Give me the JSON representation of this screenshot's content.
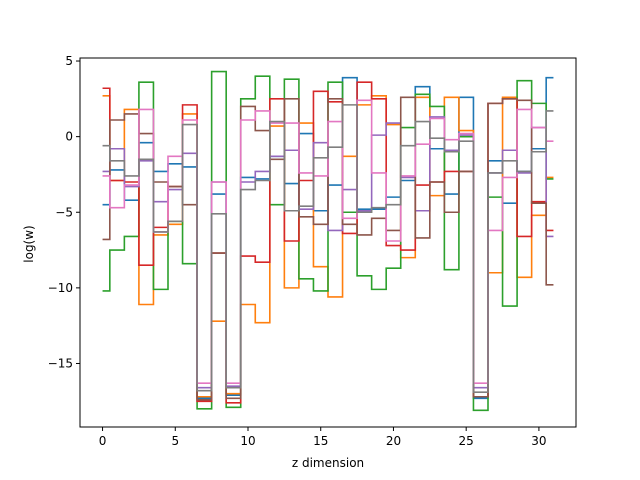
{
  "chart_data": {
    "type": "line",
    "drawstyle": "steps-mid",
    "title": "",
    "xlabel": "z dimension",
    "ylabel": "log(w)",
    "xlim": [
      -1.55,
      32.55
    ],
    "ylim": [
      -19.2,
      5.2
    ],
    "xticks": [
      0,
      5,
      10,
      15,
      20,
      25,
      30
    ],
    "yticks": [
      -15,
      -10,
      -5,
      0,
      5
    ],
    "grid": false,
    "x": [
      0,
      1,
      2,
      3,
      4,
      5,
      6,
      7,
      8,
      9,
      10,
      11,
      12,
      13,
      14,
      15,
      16,
      17,
      18,
      19,
      20,
      21,
      22,
      23,
      24,
      25,
      26,
      27,
      28,
      29,
      30,
      31
    ],
    "series": [
      {
        "color": "#1f77b4",
        "values": [
          -4.5,
          -2.2,
          -4.2,
          -0.4,
          -2.3,
          -1.8,
          -2.0,
          -17.3,
          -3.8,
          -17.1,
          -2.7,
          -2.8,
          -1.3,
          -3.1,
          0.2,
          -4.9,
          -3.2,
          3.9,
          -4.8,
          -4.8,
          -4.0,
          -2.9,
          3.3,
          -0.8,
          -3.8,
          2.6,
          -17.3,
          -1.6,
          -4.4,
          -2.3,
          -0.8,
          3.9
        ]
      },
      {
        "color": "#ff7f0e",
        "values": [
          2.7,
          -2.9,
          1.8,
          -11.1,
          -6.5,
          -5.8,
          1.5,
          -17.2,
          -12.2,
          -17.0,
          -11.1,
          -12.3,
          0.7,
          -10.0,
          0.9,
          -8.6,
          -10.6,
          -1.3,
          2.1,
          2.7,
          0.8,
          -8.0,
          2.6,
          -3.9,
          2.6,
          0.4,
          -17.2,
          -9.0,
          2.6,
          -9.3,
          -5.2,
          -2.7
        ]
      },
      {
        "color": "#2ca02c",
        "values": [
          -10.2,
          -7.5,
          -6.6,
          3.6,
          -10.1,
          -5.6,
          -8.4,
          -18.0,
          4.3,
          -17.9,
          2.5,
          4.0,
          -4.5,
          3.8,
          -9.4,
          -10.2,
          3.6,
          -5.0,
          -9.2,
          -10.1,
          -8.7,
          0.6,
          2.8,
          2.0,
          -8.8,
          0.0,
          -18.1,
          -4.0,
          -11.2,
          3.7,
          2.2,
          -2.8
        ]
      },
      {
        "color": "#d62728",
        "values": [
          3.2,
          -2.9,
          -3.0,
          -8.5,
          -6.0,
          -3.3,
          2.1,
          -17.5,
          -7.7,
          -17.6,
          -7.9,
          -8.3,
          2.5,
          -6.9,
          -2.9,
          3.0,
          2.3,
          -6.4,
          3.6,
          2.5,
          -7.2,
          -7.5,
          -3.2,
          -3.0,
          -2.3,
          -2.3,
          -17.2,
          2.2,
          2.5,
          -6.6,
          -4.3,
          -6.2
        ]
      },
      {
        "color": "#9467bd",
        "values": [
          -2.3,
          -0.8,
          -3.3,
          -1.6,
          -4.3,
          -3.5,
          -1.1,
          -16.6,
          -3.0,
          -16.5,
          -3.0,
          -2.3,
          -1.3,
          -0.9,
          -4.8,
          -0.4,
          -6.2,
          -3.5,
          -4.9,
          0.1,
          0.9,
          -2.7,
          -4.9,
          1.3,
          -0.9,
          0.1,
          -16.6,
          -2.4,
          -0.9,
          -2.4,
          0.6,
          -6.6
        ]
      },
      {
        "color": "#8c564b",
        "values": [
          -6.8,
          1.1,
          1.5,
          0.2,
          -3.0,
          -3.3,
          -4.5,
          -17.4,
          -7.7,
          -17.3,
          2.0,
          0.4,
          -1.5,
          2.5,
          -5.3,
          -5.8,
          2.5,
          -5.8,
          -6.5,
          -5.4,
          -6.2,
          2.6,
          -6.7,
          -3.0,
          -5.0,
          -2.3,
          -17.2,
          2.2,
          2.5,
          2.4,
          -4.4,
          -9.8
        ]
      },
      {
        "color": "#e377c2",
        "values": [
          -2.6,
          -4.7,
          -3.2,
          1.8,
          -6.3,
          -1.3,
          1.1,
          -16.3,
          -3.0,
          -16.3,
          1.1,
          1.7,
          0.9,
          0.9,
          -2.4,
          -2.6,
          1.0,
          -5.4,
          2.4,
          -2.4,
          -6.9,
          -2.6,
          -0.5,
          1.2,
          -0.2,
          0.2,
          -16.3,
          -6.2,
          -2.7,
          1.8,
          0.6,
          -0.3
        ]
      },
      {
        "color": "#7f7f7f",
        "values": [
          -0.6,
          -1.6,
          -2.6,
          -1.5,
          -6.3,
          -5.6,
          0.8,
          -16.8,
          -5.1,
          -16.6,
          -3.5,
          -2.9,
          1.0,
          -4.9,
          -4.6,
          -1.4,
          -0.7,
          2.1,
          -5.0,
          -4.7,
          -4.5,
          -0.6,
          1.0,
          -0.1,
          -1.0,
          -0.3,
          -16.9,
          -2.4,
          -1.6,
          -2.3,
          -1.0,
          1.7
        ]
      }
    ]
  }
}
